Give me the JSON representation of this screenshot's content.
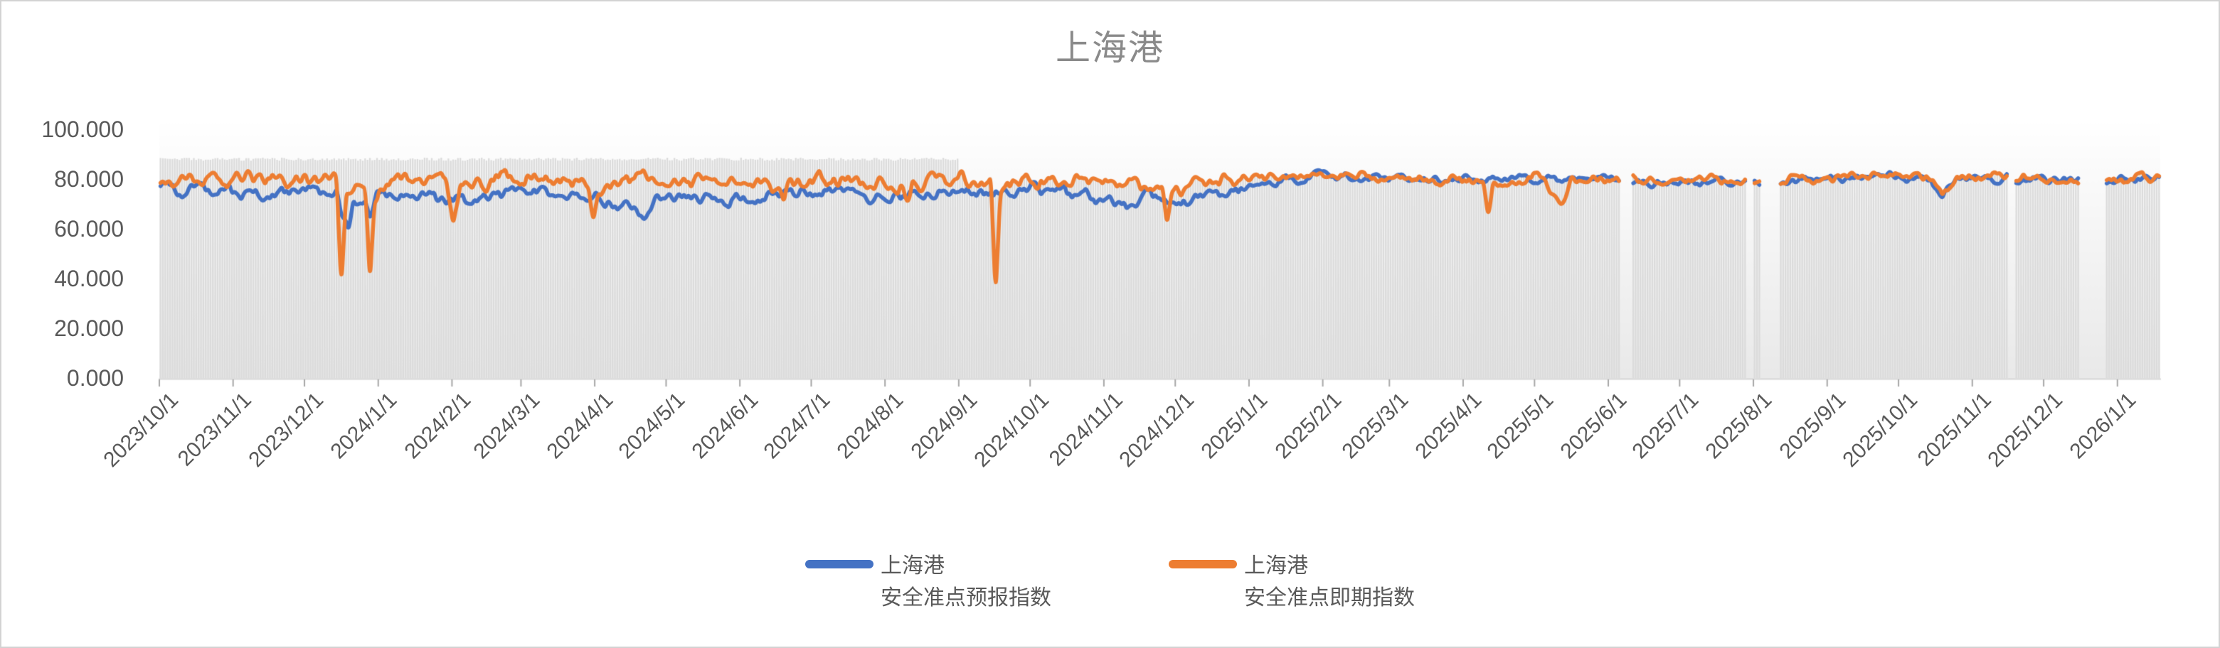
{
  "title": "上海港",
  "colors": {
    "forecast_line": "#4472C4",
    "spot_line": "#ED7D31",
    "background_bars": "#DBDBDB",
    "plot_gradient_top": "#FFFFFF",
    "plot_gradient_bottom": "#E9E9E9",
    "axis_line": "#D6D6D6",
    "tick_mark": "#A6A6A6",
    "axis_label_text": "#595959",
    "title_text": "#8A8A8A"
  },
  "legend": {
    "items": [
      {
        "name": "上海港",
        "sub": "安全准点预报指数",
        "color": "#4472C4"
      },
      {
        "name": "上海港",
        "sub": "安全准点即期指数",
        "color": "#ED7D31"
      }
    ]
  },
  "chart_data": {
    "type": "line",
    "title": "上海港",
    "x_start": "2023/10/1",
    "x_end": "2026/1/18",
    "x_tick_labels": [
      "2023/10/1",
      "2023/11/1",
      "2023/12/1",
      "2024/1/1",
      "2024/2/1",
      "2024/3/1",
      "2024/4/1",
      "2024/5/1",
      "2024/6/1",
      "2024/7/1",
      "2024/8/1",
      "2024/9/1",
      "2024/10/1",
      "2024/11/1",
      "2024/12/1",
      "2025/1/1",
      "2025/2/1",
      "2025/3/1",
      "2025/4/1",
      "2025/5/1",
      "2025/6/1",
      "2025/7/1",
      "2025/8/1",
      "2025/9/1",
      "2025/10/1",
      "2025/11/1",
      "2025/12/1",
      "2026/1/1"
    ],
    "y_ticks": [
      "100.000",
      "80.000",
      "60.000",
      "40.000",
      "20.000",
      "0.000"
    ],
    "y_tick_values": [
      100,
      80,
      60,
      40,
      20,
      0
    ],
    "ylim": [
      0,
      100
    ],
    "grid": false,
    "legend_position": "bottom-center",
    "gaps": [
      [
        "2025/6/6",
        "2025/6/10"
      ],
      [
        "2025/7/29",
        "2025/7/31"
      ],
      [
        "2025/8/4",
        "2025/8/11"
      ],
      [
        "2025/11/16",
        "2025/11/18"
      ],
      [
        "2025/12/16",
        "2025/12/26"
      ]
    ],
    "background_bars": {
      "color": "#DBDBDB",
      "flat_top_value": 88,
      "flat_until": "2024/9/1"
    },
    "noise": {
      "seed": 20240916,
      "forecast_amp": 2.6,
      "spot_amp": 3.1,
      "calm_from": "2025/1/1",
      "calm_factor": 0.65
    },
    "series": [
      {
        "name": "上海港\n安全准点预报指数",
        "color": "#4472C4",
        "anchor_points": [
          [
            "2023/10/1",
            76
          ],
          [
            "2023/10/20",
            75
          ],
          [
            "2023/11/10",
            74
          ],
          [
            "2023/12/1",
            75
          ],
          [
            "2023/12/14",
            74
          ],
          [
            "2023/12/17",
            63
          ],
          [
            "2023/12/19",
            59
          ],
          [
            "2023/12/21",
            73
          ],
          [
            "2023/12/26",
            72
          ],
          [
            "2023/12/28",
            64
          ],
          [
            "2023/12/31",
            74
          ],
          [
            "2024/1/15",
            74
          ],
          [
            "2024/2/1",
            71
          ],
          [
            "2024/2/20",
            74
          ],
          [
            "2024/3/10",
            74
          ],
          [
            "2024/4/1",
            73
          ],
          [
            "2024/4/22",
            66
          ],
          [
            "2024/4/26",
            73
          ],
          [
            "2024/5/15",
            73
          ],
          [
            "2024/6/10",
            72
          ],
          [
            "2024/7/1",
            75
          ],
          [
            "2024/8/1",
            73
          ],
          [
            "2024/8/20",
            75
          ],
          [
            "2024/9/16",
            74
          ],
          [
            "2024/10/1",
            76
          ],
          [
            "2024/10/20",
            74
          ],
          [
            "2024/11/9",
            69
          ],
          [
            "2024/11/20",
            73
          ],
          [
            "2024/12/1",
            71
          ],
          [
            "2024/12/20",
            74
          ],
          [
            "2025/1/10",
            79
          ],
          [
            "2025/2/1",
            81
          ],
          [
            "2025/3/1",
            80
          ],
          [
            "2025/4/1",
            80
          ],
          [
            "2025/5/1",
            80
          ],
          [
            "2025/6/1",
            80
          ],
          [
            "2025/7/1",
            78
          ],
          [
            "2025/8/1",
            79
          ],
          [
            "2025/9/1",
            80
          ],
          [
            "2025/10/1",
            81
          ],
          [
            "2025/10/14",
            80
          ],
          [
            "2025/10/19",
            74
          ],
          [
            "2025/10/25",
            80
          ],
          [
            "2025/11/10",
            80
          ],
          [
            "2025/12/1",
            80
          ],
          [
            "2025/12/27",
            79
          ],
          [
            "2026/1/18",
            81
          ]
        ]
      },
      {
        "name": "上海港\n安全准点即期指数",
        "color": "#ED7D31",
        "anchor_points": [
          [
            "2023/10/1",
            79
          ],
          [
            "2023/11/1",
            80
          ],
          [
            "2023/12/1",
            80
          ],
          [
            "2023/12/14",
            79
          ],
          [
            "2023/12/16",
            37
          ],
          [
            "2023/12/18",
            76
          ],
          [
            "2023/12/26",
            79
          ],
          [
            "2023/12/28",
            41
          ],
          [
            "2023/12/30",
            74
          ],
          [
            "2024/1/10",
            80
          ],
          [
            "2024/1/29",
            78
          ],
          [
            "2024/2/1",
            61
          ],
          [
            "2024/2/4",
            77
          ],
          [
            "2024/2/20",
            80
          ],
          [
            "2024/3/15",
            80
          ],
          [
            "2024/3/29",
            78
          ],
          [
            "2024/3/31",
            64
          ],
          [
            "2024/4/2",
            77
          ],
          [
            "2024/4/20",
            80
          ],
          [
            "2024/5/10",
            79
          ],
          [
            "2024/6/1",
            80
          ],
          [
            "2024/6/17",
            77
          ],
          [
            "2024/6/19",
            69
          ],
          [
            "2024/6/21",
            78
          ],
          [
            "2024/7/10",
            80
          ],
          [
            "2024/8/8",
            77
          ],
          [
            "2024/8/10",
            70
          ],
          [
            "2024/8/12",
            78
          ],
          [
            "2024/9/1",
            80
          ],
          [
            "2024/9/14",
            78
          ],
          [
            "2024/9/16",
            30
          ],
          [
            "2024/9/18",
            76
          ],
          [
            "2024/10/1",
            80
          ],
          [
            "2024/11/1",
            79
          ],
          [
            "2024/11/25",
            75
          ],
          [
            "2024/11/27",
            61
          ],
          [
            "2024/11/29",
            75
          ],
          [
            "2024/12/10",
            78
          ],
          [
            "2025/1/10",
            81
          ],
          [
            "2025/2/1",
            82
          ],
          [
            "2025/3/1",
            81
          ],
          [
            "2025/4/9",
            79
          ],
          [
            "2025/4/11",
            65
          ],
          [
            "2025/4/13",
            78
          ],
          [
            "2025/5/1",
            81
          ],
          [
            "2025/5/13",
            70
          ],
          [
            "2025/5/16",
            79
          ],
          [
            "2025/6/1",
            80
          ],
          [
            "2025/7/1",
            80
          ],
          [
            "2025/8/1",
            79
          ],
          [
            "2025/9/1",
            81
          ],
          [
            "2025/10/1",
            82
          ],
          [
            "2025/10/14",
            81
          ],
          [
            "2025/10/19",
            72
          ],
          [
            "2025/10/25",
            81
          ],
          [
            "2025/11/10",
            81
          ],
          [
            "2025/12/1",
            80
          ],
          [
            "2025/12/27",
            79
          ],
          [
            "2026/1/18",
            81
          ]
        ]
      }
    ]
  }
}
